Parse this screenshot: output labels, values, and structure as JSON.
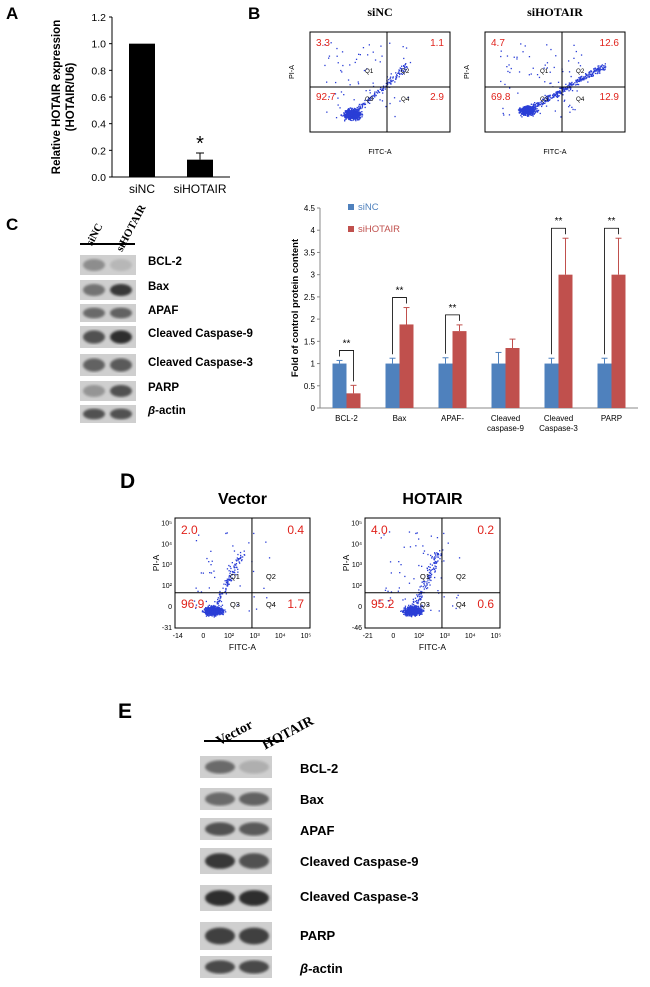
{
  "panels": {
    "A": "A",
    "B": "B",
    "C": "C",
    "D": "D",
    "E": "E"
  },
  "chart_data": [
    {
      "id": "A",
      "type": "bar",
      "categories": [
        "siNC",
        "siHOTAIR"
      ],
      "values": [
        1.0,
        0.13
      ],
      "errors": [
        0,
        0.05
      ],
      "ylabel": "Relative HOTAIR expression (HOTAIR/U6)",
      "ylabel_line1": "Relative HOTAIR expression",
      "ylabel_line2": "(HOTAIR/U6)",
      "ylim": [
        0,
        1.2
      ],
      "yticks": [
        "0.0",
        "0.2",
        "0.4",
        "0.6",
        "0.8",
        "1.0",
        "1.2"
      ],
      "annotation": "*",
      "color": "#000000"
    },
    {
      "id": "B-bar",
      "type": "bar",
      "categories": [
        "BCL-2",
        "Bax",
        "APAF-",
        "Cleaved caspase-9",
        "Cleaved Caspase-3",
        "PARP"
      ],
      "category_lines": [
        [
          "BCL-2"
        ],
        [
          "Bax"
        ],
        [
          "APAF-"
        ],
        [
          "Cleaved",
          "caspase-9"
        ],
        [
          "Cleaved",
          "Caspase-3"
        ],
        [
          "PARP"
        ]
      ],
      "series": [
        {
          "name": "siNC",
          "values": [
            1,
            1,
            1,
            1,
            1,
            1
          ],
          "errors": [
            0.07,
            0.12,
            0.13,
            0.25,
            0.12,
            0.12
          ],
          "color": "#4f81bd"
        },
        {
          "name": "siHOTAIR",
          "values": [
            0.33,
            1.88,
            1.73,
            1.35,
            3.0,
            3.0
          ],
          "errors": [
            0.18,
            0.38,
            0.14,
            0.2,
            0.82,
            0.82
          ],
          "color": "#c0504d"
        }
      ],
      "significance": [
        "**",
        "**",
        "**",
        "",
        "**",
        "**"
      ],
      "ylabel": "Fold of control protein content",
      "ylim": [
        0,
        4.5
      ],
      "yticks": [
        "0",
        "0.5",
        "1",
        "1.5",
        "2",
        "2.5",
        "3",
        "3.5",
        "4",
        "4.5"
      ],
      "legend_position": "top-left"
    }
  ],
  "flow_b": [
    {
      "title": "siNC",
      "ul": "3.3",
      "ur": "1.1",
      "ll": "92.7",
      "lr": "2.9",
      "q": [
        "Q1",
        "Q2",
        "Q3",
        "Q4"
      ],
      "xlabel": "FITC-A",
      "ylabel": "PI-A"
    },
    {
      "title": "siHOTAIR",
      "ul": "4.7",
      "ur": "12.6",
      "ll": "69.8",
      "lr": "12.9",
      "q": [
        "Q1",
        "Q2",
        "Q3",
        "Q4"
      ],
      "xlabel": "FITC-A",
      "ylabel": "PI-A"
    }
  ],
  "flow_d": [
    {
      "title": "Vector",
      "ul": "2.0",
      "ur": "0.4",
      "ll": "96.9",
      "lr": "1.7",
      "q": [
        "Q1",
        "Q2",
        "Q3",
        "Q4"
      ],
      "xlabel": "FITC-A",
      "ylabel": "PI-A",
      "xticks": [
        "-14",
        "0",
        "10²",
        "10³",
        "10⁴",
        "10⁵"
      ],
      "yticks": [
        "10⁵",
        "10⁴",
        "10³",
        "10²",
        "0",
        "-31"
      ]
    },
    {
      "title": "HOTAIR",
      "ul": "4.0",
      "ur": "0.2",
      "ll": "95.2",
      "lr": "0.6",
      "q": [
        "Q1",
        "Q2",
        "Q3",
        "Q4"
      ],
      "xlabel": "FITC-A",
      "ylabel": "PI-A",
      "xticks": [
        "-21",
        "0",
        "10²",
        "10³",
        "10⁴",
        "10⁵"
      ],
      "yticks": [
        "10⁵",
        "10⁴",
        "10³",
        "10²",
        "0",
        "-46"
      ]
    }
  ],
  "blot_c": {
    "lanes": [
      "siNC",
      "siHOTAIR"
    ],
    "labels": [
      "BCL-2",
      "Bax",
      "APAF",
      "Cleaved Caspase-9",
      "Cleaved Caspase-3",
      "PARP",
      "actin"
    ],
    "beta": "β-"
  },
  "blot_e": {
    "lanes": [
      "Vector",
      "HOTAIR"
    ],
    "labels": [
      "BCL-2",
      "Bax",
      "APAF",
      "Cleaved Caspase-9",
      "Cleaved Caspase-3",
      "PARP",
      "actin"
    ],
    "beta": "β-"
  },
  "colors": {
    "red_text": "#e0231c",
    "dot_blue": "#2a3ed6",
    "siNC": "#4f81bd",
    "siHOTAIR": "#c0504d"
  }
}
